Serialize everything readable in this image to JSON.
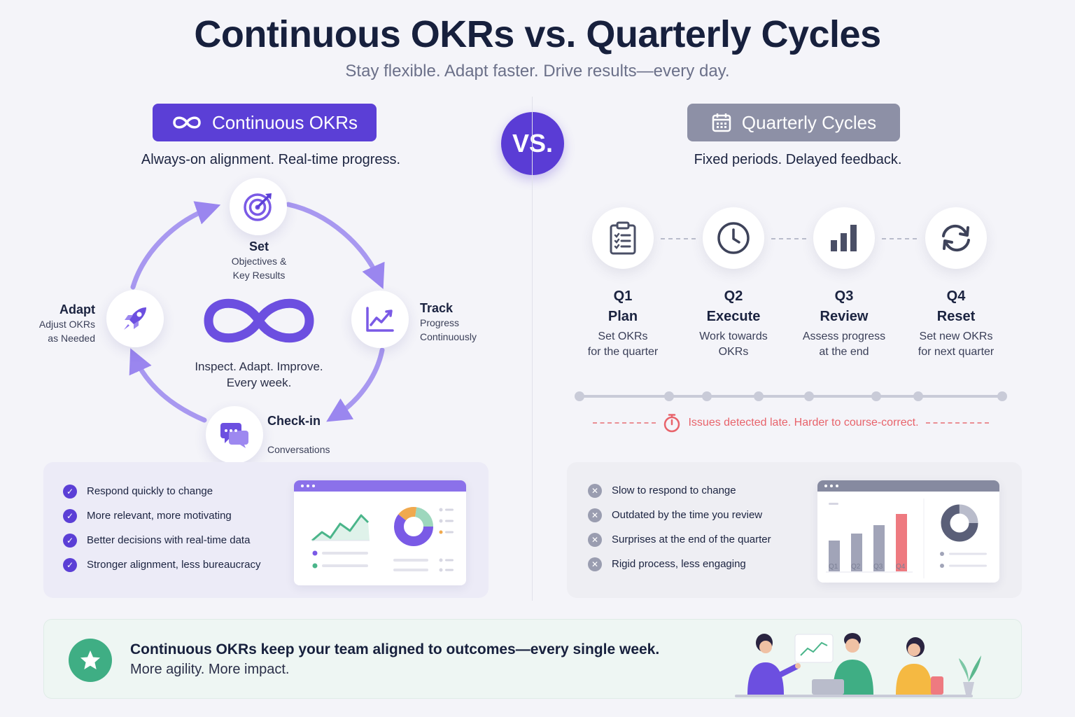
{
  "header": {
    "title": "Continuous OKRs vs. Quarterly Cycles",
    "subtitle": "Stay flexible. Adapt faster. Drive results—every day."
  },
  "vs_label": "VS.",
  "continuous": {
    "pill_label": "Continuous OKRs",
    "pill_icon": "infinity-icon",
    "tagline": "Always-on alignment. Real-time progress.",
    "accent_color": "#5b3fd6",
    "cycle": {
      "center_text_line1": "Inspect. Adapt. Improve.",
      "center_text_line2": "Every week.",
      "steps": {
        "set": {
          "title": "Set",
          "sub1": "Objectives &",
          "sub2": "Key Results",
          "icon": "target-icon"
        },
        "track": {
          "title": "Track",
          "sub1": "Progress",
          "sub2": "Continuously",
          "icon": "trend-chart-icon"
        },
        "checkin": {
          "title": "Check-in",
          "sub2": "Conversations",
          "icon": "chat-icon"
        },
        "adapt": {
          "title": "Adapt",
          "sub1": "Adjust OKRs",
          "sub2": "as Needed",
          "icon": "rocket-icon"
        }
      }
    },
    "benefits": [
      "Respond quickly to change",
      "More relevant, more motivating",
      "Better decisions with real-time data",
      "Stronger alignment, less bureaucracy"
    ]
  },
  "quarterly": {
    "pill_label": "Quarterly Cycles",
    "pill_icon": "calendar-icon",
    "tagline": "Fixed periods. Delayed feedback.",
    "accent_color": "#8d90a6",
    "quarters": [
      {
        "q": "Q1",
        "title": "Plan",
        "desc1": "Set OKRs",
        "desc2": "for the quarter",
        "icon": "clipboard-icon"
      },
      {
        "q": "Q2",
        "title": "Execute",
        "desc1": "Work towards",
        "desc2": "OKRs",
        "icon": "clock-icon"
      },
      {
        "q": "Q3",
        "title": "Review",
        "desc1": "Assess progress",
        "desc2": "at the end",
        "icon": "bar-chart-icon"
      },
      {
        "q": "Q4",
        "title": "Reset",
        "desc1": "Set new OKRs",
        "desc2": "for next quarter",
        "icon": "refresh-icon"
      }
    ],
    "warning": "Issues detected late. Harder to course-correct.",
    "warning_color": "#e8636b",
    "drawbacks": [
      "Slow to respond to change",
      "Outdated by the time you review",
      "Surprises at the end of the quarter",
      "Rigid process, less engaging"
    ],
    "mock_chart_labels": [
      "Q1",
      "Q2",
      "Q3",
      "Q4"
    ]
  },
  "footer": {
    "main": "Continuous OKRs keep your team aligned to outcomes—every single week.",
    "sub": "More agility. More impact.",
    "icon": "star-icon"
  }
}
